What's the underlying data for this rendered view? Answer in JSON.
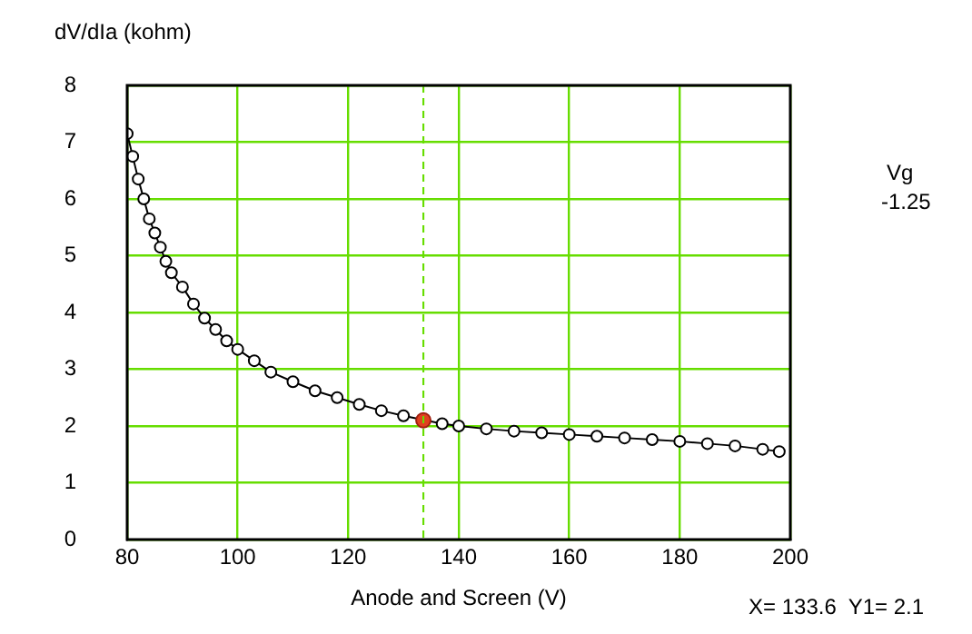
{
  "chart_data": {
    "type": "line",
    "ylabel": "dV/dIa (kohm)",
    "xlabel": "Anode and Screen (V)",
    "xlim": [
      80,
      200
    ],
    "xticks": [
      80,
      100,
      120,
      140,
      160,
      180,
      200
    ],
    "ylim": [
      0,
      8
    ],
    "yticks": [
      0,
      1,
      2,
      3,
      4,
      5,
      6,
      7,
      8
    ],
    "grid": true,
    "legend": false,
    "marker": "circle",
    "line_style": "solid",
    "series": [
      {
        "color": "#000000",
        "x": [
          80,
          81,
          82,
          83,
          84,
          85,
          86,
          87,
          88,
          90,
          92,
          94,
          96,
          98,
          100,
          103,
          106,
          110,
          114,
          118,
          122,
          126,
          130,
          137,
          140,
          145,
          150,
          155,
          160,
          165,
          170,
          175,
          180,
          185,
          190,
          195,
          198
        ],
        "values": [
          7.15,
          6.75,
          6.35,
          6.0,
          5.65,
          5.4,
          5.15,
          4.9,
          4.7,
          4.45,
          4.15,
          3.9,
          3.7,
          3.5,
          3.35,
          3.15,
          2.95,
          2.78,
          2.62,
          2.5,
          2.38,
          2.27,
          2.18,
          2.04,
          2.0,
          1.95,
          1.91,
          1.88,
          1.85,
          1.82,
          1.79,
          1.76,
          1.73,
          1.69,
          1.65,
          1.59,
          1.55
        ]
      },
      {
        "type": "scatter",
        "color": "#e04020",
        "x": [
          133.6
        ],
        "values": [
          2.1
        ]
      }
    ],
    "ref_lines": [
      {
        "axis": "x",
        "value": 133.6,
        "color": "#66dd00",
        "line_style": "dashed"
      }
    ],
    "annotations": [
      "Vg",
      "-1.25",
      "X= 133.6  Y1= 2.1"
    ]
  }
}
